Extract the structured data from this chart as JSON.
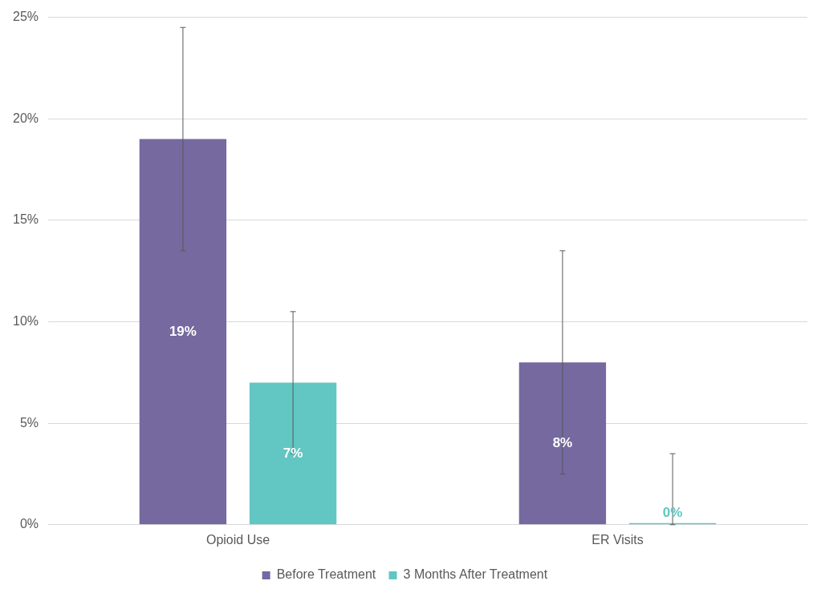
{
  "chart_data": {
    "type": "bar",
    "categories": [
      "Opioid Use",
      "ER Visits"
    ],
    "series": [
      {
        "name": "Before Treatment",
        "color": "#7569a0",
        "values": [
          19,
          8
        ],
        "errors": [
          [
            13.5,
            24.5
          ],
          [
            2.5,
            13.5
          ]
        ],
        "value_labels": [
          "19%",
          "8%"
        ]
      },
      {
        "name": "3 Months After Treatment",
        "color": "#62c6c2",
        "values": [
          7,
          0
        ],
        "errors": [
          [
            3.5,
            10.5
          ],
          [
            0,
            3.5
          ]
        ],
        "value_labels": [
          "7%",
          "0%"
        ]
      }
    ],
    "ylim": [
      0,
      25
    ],
    "yticks": [
      {
        "value": 0,
        "label": "0%"
      },
      {
        "value": 5,
        "label": "5%"
      },
      {
        "value": 10,
        "label": "10%"
      },
      {
        "value": 15,
        "label": "15%"
      },
      {
        "value": 20,
        "label": "20%"
      },
      {
        "value": 25,
        "label": "25%"
      }
    ],
    "grid": "y",
    "legend": "bottom"
  }
}
